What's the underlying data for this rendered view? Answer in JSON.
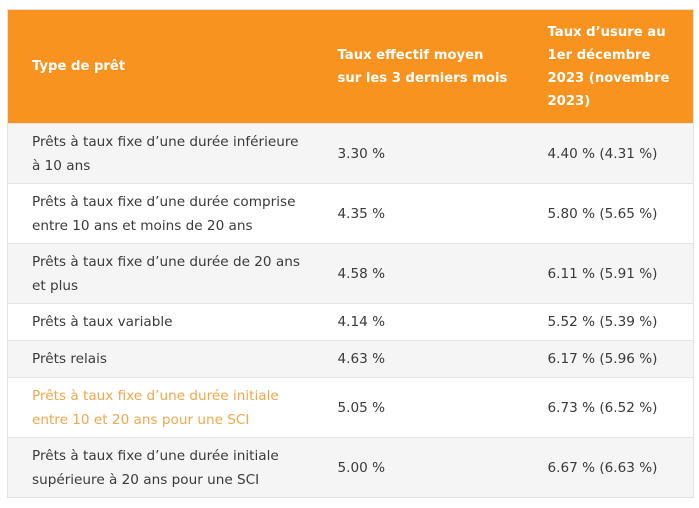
{
  "table": {
    "headers": [
      "Type de prêt",
      "Taux effectif moyen sur les 3 derniers mois",
      "Taux d’usure au 1er décembre 2023 (novembre 2023)"
    ],
    "rows": [
      {
        "type": "Prêts à taux fixe d’une durée inférieure à 10 ans",
        "taux_moyen": "3.30 %",
        "taux_usure": "4.40 % (4.31 %)"
      },
      {
        "type": "Prêts à taux fixe d’une durée comprise entre 10 ans et moins de 20 ans",
        "taux_moyen": "4.35 %",
        "taux_usure": "5.80 % (5.65 %)"
      },
      {
        "type": "Prêts à taux fixe d’une durée de 20 ans et plus",
        "taux_moyen": "4.58 %",
        "taux_usure": "6.11 % (5.91 %)"
      },
      {
        "type": "Prêts à taux variable",
        "taux_moyen": "4.14 %",
        "taux_usure": "5.52 % (5.39 %)"
      },
      {
        "type": "Prêts relais",
        "taux_moyen": "4.63 %",
        "taux_usure": "6.17 % (5.96 %)"
      },
      {
        "type": "Prêts à taux fixe d’une durée initiale entre 10 et 20 ans pour une SCI",
        "taux_moyen": "5.05 %",
        "taux_usure": "6.73 % (6.52 %)"
      },
      {
        "type": "Prêts à taux fixe d’une durée initiale supérieure à 20 ans pour une SCI",
        "taux_moyen": "5.00 %",
        "taux_usure": "6.67 % (6.63 %)"
      }
    ]
  },
  "colors": {
    "header_background": "#f7931e",
    "header_text": "#ffffff",
    "highlight_text": "#f0a84a",
    "row_odd": "#f5f5f5",
    "row_even": "#ffffff"
  }
}
